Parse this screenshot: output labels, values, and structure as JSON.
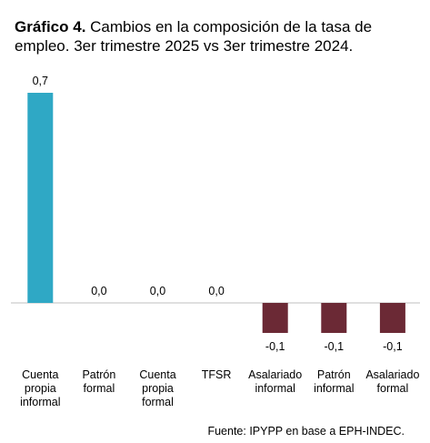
{
  "title_prefix": "Gráfico 4.",
  "title_text": " Cambios en la composición de la tasa de empleo. 3er trimestre 2025 vs 3er trimestre 2024.",
  "source": "Fuente: IPYPP en base a EPH-INDEC.",
  "colors": {
    "positive": "#2fa8c5",
    "negative": "#6b2935",
    "axis": "#bfbfbf"
  },
  "chart_data": {
    "type": "bar",
    "categories": [
      "Cuenta propia informal",
      "Patrón formal",
      "Cuenta propia formal",
      "TFSR",
      "Asalariado informal",
      "Patrón informal",
      "Asalariado formal"
    ],
    "category_lines": [
      [
        "Cuenta",
        "propia",
        "informal"
      ],
      [
        "Patrón",
        "formal"
      ],
      [
        "Cuenta",
        "propia",
        "formal"
      ],
      [
        "TFSR"
      ],
      [
        "Asalariado",
        "informal"
      ],
      [
        "Patrón",
        "informal"
      ],
      [
        "Asalariado",
        "formal"
      ]
    ],
    "values": [
      0.7,
      0.0,
      0.0,
      0.0,
      -0.1,
      -0.1,
      -0.1
    ],
    "data_labels": [
      "0,7",
      "0,0",
      "0,0",
      "0,0",
      "-0,1",
      "-0,1",
      "-0,1"
    ],
    "title": "Gráfico 4. Cambios en la composición de la tasa de empleo. 3er trimestre 2025 vs 3er trimestre 2024.",
    "xlabel": "",
    "ylabel": "",
    "grid": false,
    "legend": "none"
  }
}
